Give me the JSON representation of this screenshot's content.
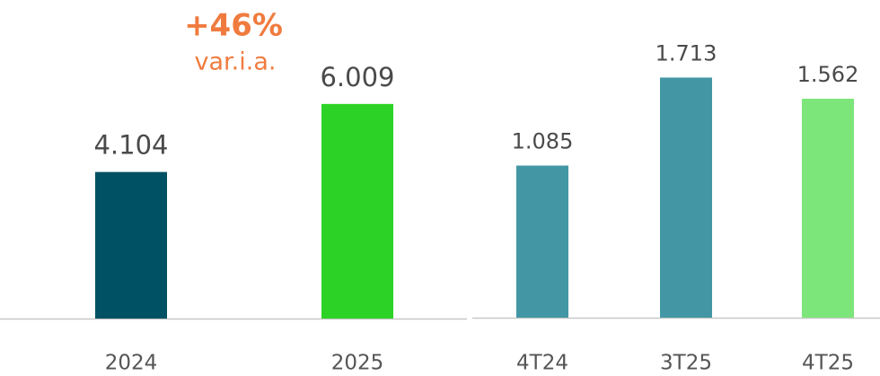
{
  "chart_data": [
    {
      "type": "bar",
      "categories": [
        "2024",
        "2025"
      ],
      "values": [
        4104,
        6009
      ],
      "value_labels": [
        "4.104",
        "6.009"
      ],
      "colors": [
        "#005163",
        "#2cd326"
      ],
      "annotations": [
        "+46%",
        "var.i.a."
      ]
    },
    {
      "type": "bar",
      "categories": [
        "4T24",
        "3T25",
        "4T25"
      ],
      "values": [
        1085,
        1713,
        1562
      ],
      "value_labels": [
        "1.085",
        "1.713",
        "1.562"
      ],
      "colors": [
        "#4397a5",
        "#4397a5",
        "#7de67a"
      ]
    }
  ]
}
